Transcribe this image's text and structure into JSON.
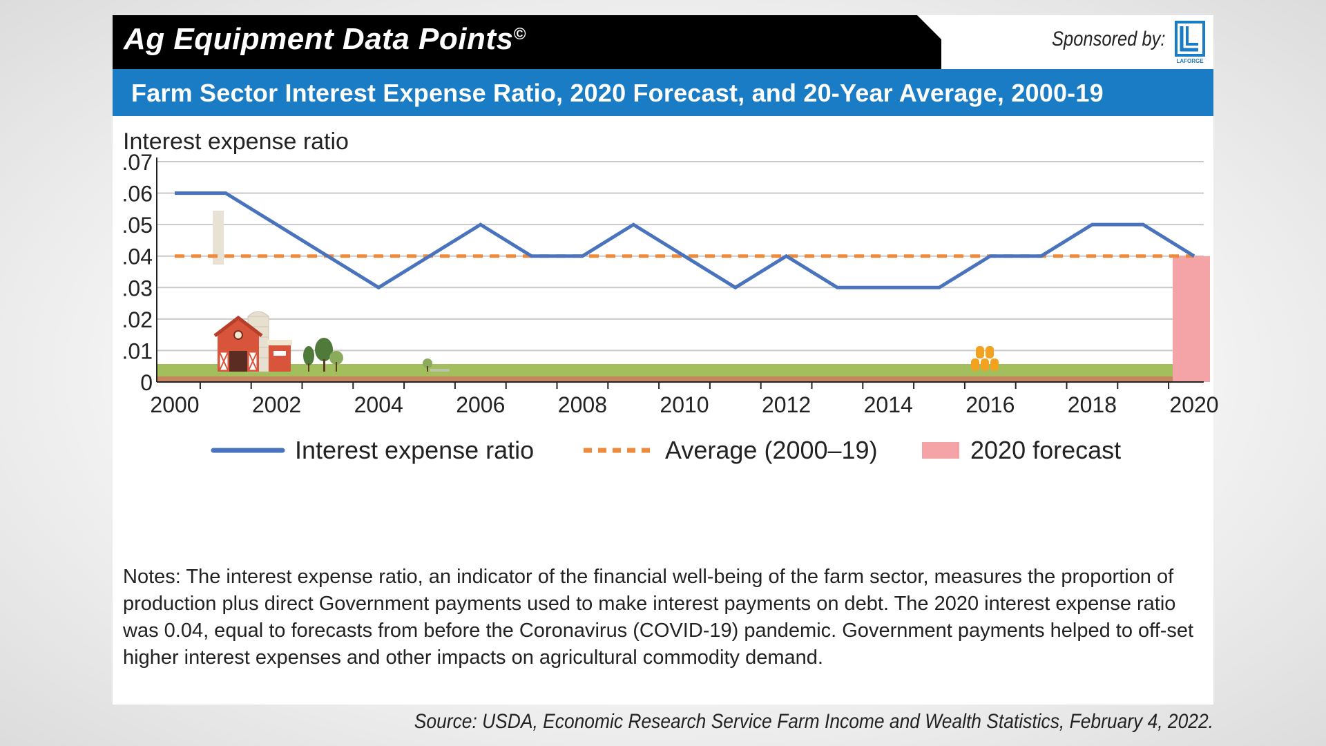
{
  "header": {
    "brand_title": "Ag Equipment Data Points",
    "brand_mark": "©",
    "sponsor_label": "Sponsored by:",
    "sponsor_logo_text": "LAFORGE"
  },
  "title": "Farm Sector Interest Expense Ratio, 2020 Forecast, and 20-Year Average, 2000-19",
  "chart_data": {
    "type": "line",
    "ylabel": "Interest expense ratio",
    "xlabel": "",
    "x": [
      2000,
      2001,
      2002,
      2003,
      2004,
      2005,
      2006,
      2007,
      2008,
      2009,
      2010,
      2011,
      2012,
      2013,
      2014,
      2015,
      2016,
      2017,
      2018,
      2019,
      2020
    ],
    "ylim": [
      0,
      0.07
    ],
    "xlim": [
      2000,
      2020
    ],
    "x_ticks": [
      "2000",
      "2002",
      "2004",
      "2006",
      "2008",
      "2010",
      "2012",
      "2014",
      "2016",
      "2018",
      "2020"
    ],
    "y_ticks": [
      {
        "value": 0,
        "label": "0"
      },
      {
        "value": 0.01,
        "label": ".01"
      },
      {
        "value": 0.02,
        "label": ".02"
      },
      {
        "value": 0.03,
        "label": ".03"
      },
      {
        "value": 0.04,
        "label": ".04"
      },
      {
        "value": 0.05,
        "label": ".05"
      },
      {
        "value": 0.06,
        "label": ".06"
      },
      {
        "value": 0.07,
        "label": ".07"
      }
    ],
    "grid": "horizontal",
    "legend_position": "bottom",
    "series": [
      {
        "name": "Interest expense ratio",
        "kind": "line",
        "color": "#4a73bd",
        "values": [
          0.06,
          0.06,
          0.05,
          0.04,
          0.03,
          0.04,
          0.05,
          0.04,
          0.04,
          0.05,
          0.04,
          0.03,
          0.04,
          0.03,
          0.03,
          0.03,
          0.04,
          0.04,
          0.05,
          0.05,
          0.04
        ]
      },
      {
        "name": "Average (2000–19)",
        "kind": "dashed-line",
        "color": "#ee8a3a",
        "value": 0.04
      },
      {
        "name": "2020 forecast",
        "kind": "bar",
        "color": "#f4a4a6",
        "x": 2020,
        "value": 0.04
      }
    ]
  },
  "notes": "Notes: The interest expense ratio, an indicator of the financial well-being of the farm sector, measures the proportion of production plus direct Government payments used to make interest payments on debt. The 2020 interest expense ratio was 0.04, equal to forecasts from before the Coronavirus (COVID-19) pandemic. Government payments helped to off-set higher interest expenses and other impacts on agricultural commodity demand.",
  "source": "Source: USDA, Economic Research Service Farm Income and Wealth Statistics, February 4, 2022."
}
